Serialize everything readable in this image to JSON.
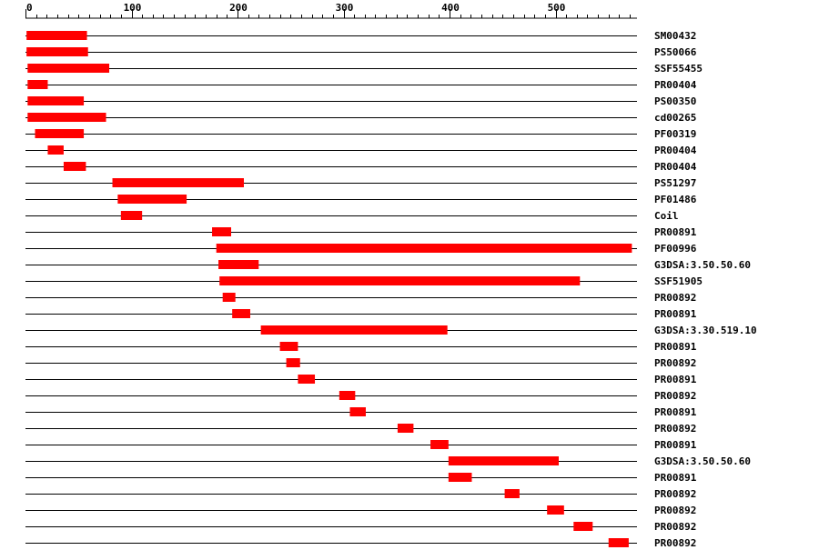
{
  "chart_data": {
    "type": "bar",
    "chart_kind": "domain-architecture",
    "xlim": [
      0,
      575
    ],
    "xticks": [
      0,
      100,
      200,
      300,
      400,
      500
    ],
    "xtick_labels": [
      "0",
      "100",
      "200",
      "300",
      "400",
      "500"
    ],
    "bar_color": "#ff0000",
    "line_color": "#000000",
    "rows": [
      {
        "label": "SM00432",
        "start": 1,
        "end": 58
      },
      {
        "label": "PS50066",
        "start": 1,
        "end": 59
      },
      {
        "label": "SSF55455",
        "start": 2,
        "end": 79
      },
      {
        "label": "PR00404",
        "start": 2,
        "end": 21
      },
      {
        "label": "PS00350",
        "start": 2,
        "end": 55
      },
      {
        "label": "cd00265",
        "start": 2,
        "end": 76
      },
      {
        "label": "PF00319",
        "start": 9,
        "end": 55
      },
      {
        "label": "PR00404",
        "start": 21,
        "end": 36
      },
      {
        "label": "PR00404",
        "start": 36,
        "end": 57
      },
      {
        "label": "PS51297",
        "start": 82,
        "end": 206
      },
      {
        "label": "PF01486",
        "start": 87,
        "end": 152
      },
      {
        "label": "Coil",
        "start": 90,
        "end": 110
      },
      {
        "label": "PR00891",
        "start": 176,
        "end": 194
      },
      {
        "label": "PF00996",
        "start": 180,
        "end": 572
      },
      {
        "label": "G3DSA:3.50.50.60",
        "start": 182,
        "end": 220
      },
      {
        "label": "SSF51905",
        "start": 183,
        "end": 523
      },
      {
        "label": "PR00892",
        "start": 186,
        "end": 198
      },
      {
        "label": "PR00891",
        "start": 195,
        "end": 212
      },
      {
        "label": "G3DSA:3.30.519.10",
        "start": 222,
        "end": 398
      },
      {
        "label": "PR00891",
        "start": 240,
        "end": 257
      },
      {
        "label": "PR00892",
        "start": 246,
        "end": 259
      },
      {
        "label": "PR00891",
        "start": 257,
        "end": 273
      },
      {
        "label": "PR00892",
        "start": 296,
        "end": 311
      },
      {
        "label": "PR00891",
        "start": 306,
        "end": 321
      },
      {
        "label": "PR00892",
        "start": 351,
        "end": 366
      },
      {
        "label": "PR00891",
        "start": 382,
        "end": 399
      },
      {
        "label": "G3DSA:3.50.50.60",
        "start": 399,
        "end": 503
      },
      {
        "label": "PR00891",
        "start": 399,
        "end": 421
      },
      {
        "label": "PR00892",
        "start": 452,
        "end": 466
      },
      {
        "label": "PR00892",
        "start": 492,
        "end": 508
      },
      {
        "label": "PR00892",
        "start": 517,
        "end": 535
      },
      {
        "label": "PR00892",
        "start": 550,
        "end": 569
      }
    ]
  }
}
